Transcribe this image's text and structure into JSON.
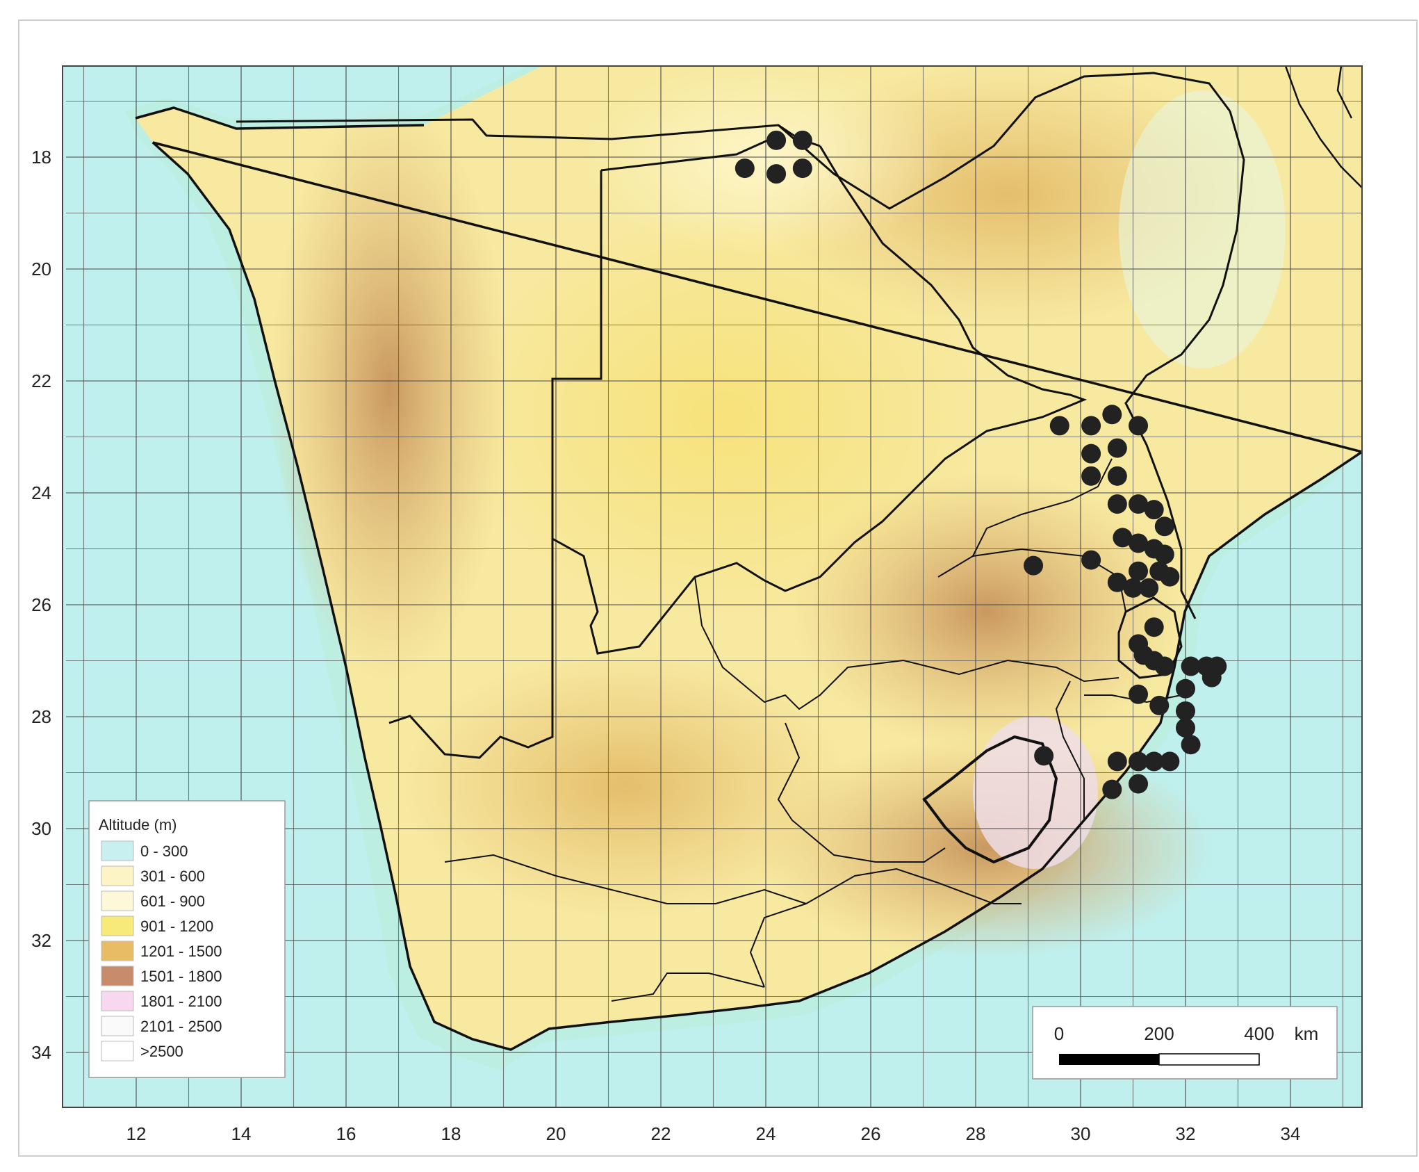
{
  "map": {
    "x_ticks": [
      "12",
      "14",
      "16",
      "18",
      "20",
      "22",
      "24",
      "26",
      "28",
      "30",
      "32",
      "34"
    ],
    "y_ticks": [
      "18",
      "20",
      "22",
      "24",
      "26",
      "28",
      "30",
      "32",
      "34"
    ]
  },
  "legend": {
    "title": "Altitude (m)",
    "items": [
      {
        "label": "0 - 300",
        "color": "#c8f0f0"
      },
      {
        "label": "301 - 600",
        "color": "#fcf4c4"
      },
      {
        "label": "601 - 900",
        "color": "#fdf8d8"
      },
      {
        "label": "901 - 1200",
        "color": "#f8ea78"
      },
      {
        "label": "1201 - 1500",
        "color": "#e8bc64"
      },
      {
        "label": "1501 - 1800",
        "color": "#c88c6c"
      },
      {
        "label": "1801 - 2100",
        "color": "#f8d8f0"
      },
      {
        "label": "2101 - 2500",
        "color": "#fafafa"
      },
      {
        "label": ">2500",
        "color": "#ffffff"
      }
    ]
  },
  "scale_bar": {
    "labels": [
      "0",
      "200",
      "400"
    ],
    "unit": "km"
  },
  "occurrences": [
    [
      24.2,
      17.7
    ],
    [
      24.7,
      17.7
    ],
    [
      23.6,
      18.2
    ],
    [
      24.2,
      18.3
    ],
    [
      24.7,
      18.2
    ],
    [
      29.6,
      22.8
    ],
    [
      30.2,
      22.8
    ],
    [
      30.6,
      22.6
    ],
    [
      31.1,
      22.8
    ],
    [
      30.2,
      23.3
    ],
    [
      30.7,
      23.2
    ],
    [
      30.2,
      23.7
    ],
    [
      30.7,
      23.7
    ],
    [
      30.7,
      24.2
    ],
    [
      31.1,
      24.2
    ],
    [
      31.4,
      24.3
    ],
    [
      31.6,
      24.6
    ],
    [
      30.8,
      24.8
    ],
    [
      31.1,
      24.9
    ],
    [
      31.4,
      25.0
    ],
    [
      31.6,
      25.1
    ],
    [
      29.1,
      25.3
    ],
    [
      30.2,
      25.2
    ],
    [
      31.1,
      25.4
    ],
    [
      31.5,
      25.4
    ],
    [
      31.7,
      25.5
    ],
    [
      30.7,
      25.6
    ],
    [
      31.0,
      25.7
    ],
    [
      31.3,
      25.7
    ],
    [
      31.4,
      26.4
    ],
    [
      31.1,
      26.7
    ],
    [
      31.2,
      26.9
    ],
    [
      31.4,
      27.0
    ],
    [
      31.6,
      27.1
    ],
    [
      32.1,
      27.1
    ],
    [
      32.4,
      27.1
    ],
    [
      32.6,
      27.1
    ],
    [
      32.5,
      27.3
    ],
    [
      32.0,
      27.5
    ],
    [
      31.1,
      27.6
    ],
    [
      31.5,
      27.8
    ],
    [
      32.0,
      27.9
    ],
    [
      32.0,
      28.2
    ],
    [
      32.1,
      28.5
    ],
    [
      29.3,
      28.7
    ],
    [
      30.7,
      28.8
    ],
    [
      31.1,
      28.8
    ],
    [
      31.4,
      28.8
    ],
    [
      31.7,
      28.8
    ],
    [
      30.6,
      29.3
    ],
    [
      31.1,
      29.2
    ]
  ],
  "colors": {
    "sea": "#bff0ee",
    "land_base": "#f8eca8",
    "border": "#111111",
    "grid": "#555555",
    "point": "#222222"
  }
}
